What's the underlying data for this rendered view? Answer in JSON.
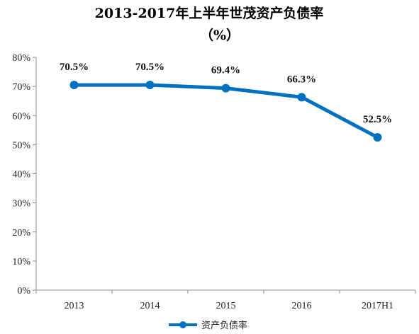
{
  "chart_data": {
    "type": "line",
    "title": "2013-2017年上半年世茂资产负债率",
    "subtitle": "（%）",
    "categories": [
      "2013",
      "2014",
      "2015",
      "2016",
      "2017H1"
    ],
    "series": [
      {
        "name": "资产负债率",
        "values": [
          70.5,
          70.5,
          69.4,
          66.3,
          52.5
        ],
        "labels": [
          "70.5%",
          "70.5%",
          "69.4%",
          "66.3%",
          "52.5%"
        ],
        "color": "#0070C0"
      }
    ],
    "ylim": [
      0,
      80
    ],
    "yticks": [
      "0%",
      "10%",
      "20%",
      "30%",
      "40%",
      "50%",
      "60%",
      "70%",
      "80%"
    ],
    "grid": false,
    "legend": "bottom"
  }
}
